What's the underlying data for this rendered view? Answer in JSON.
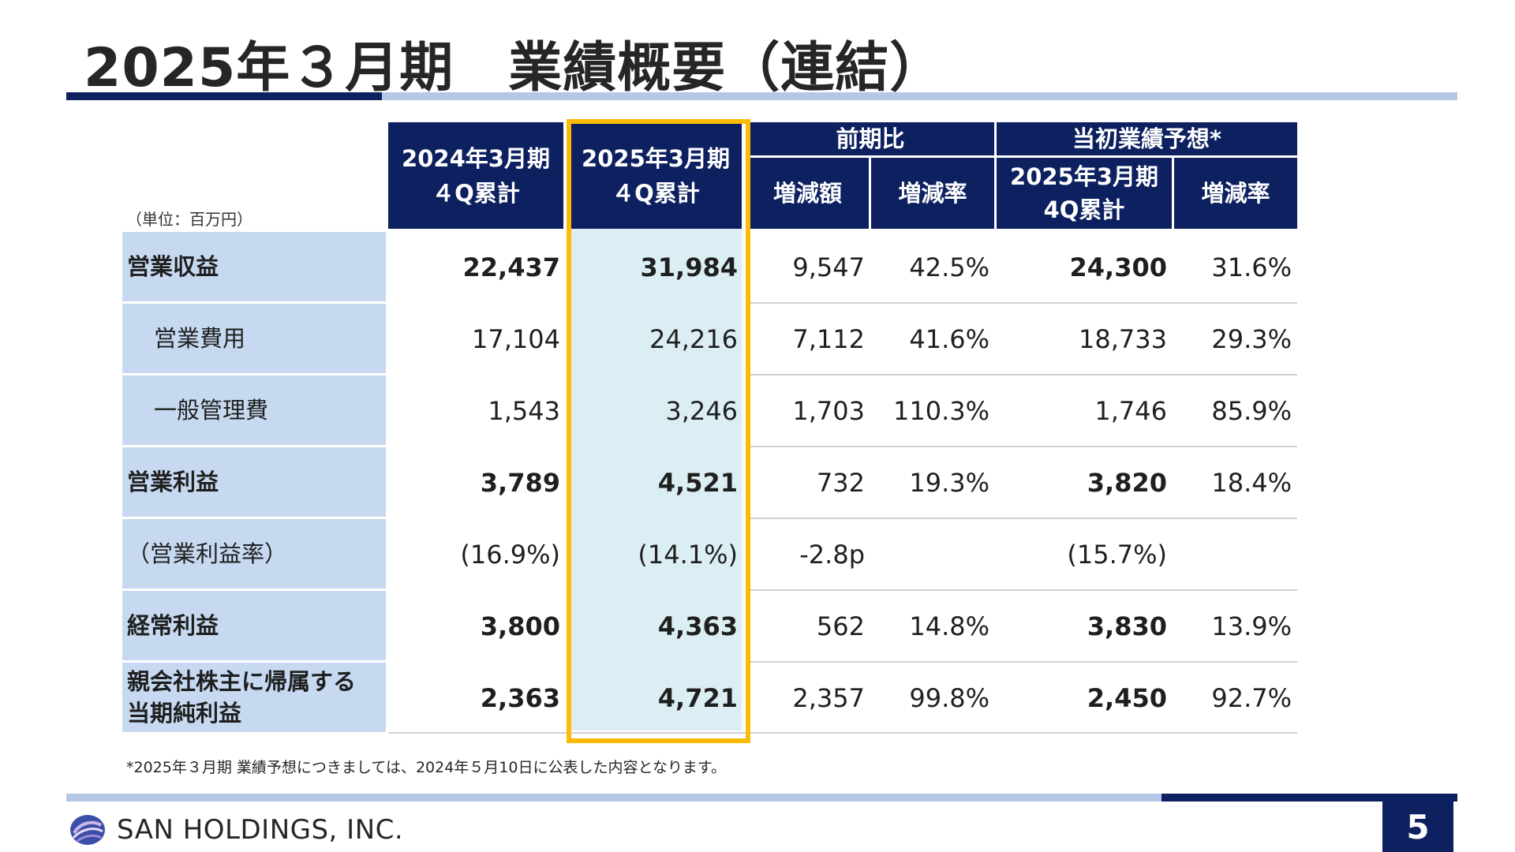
{
  "title": "2025年３月期　業績概要（連結）",
  "unit": "（単位：百万円）",
  "headers": {
    "col1": [
      "2024年3月期",
      "４Q累計"
    ],
    "col2": [
      "2025年3月期",
      "４Q累計"
    ],
    "yoy_group": "前期比",
    "yoy_amount": "増減額",
    "yoy_rate": "増減率",
    "forecast_group": "当初業績予想*",
    "forecast_value": [
      "2025年3月期",
      "4Q累計"
    ],
    "forecast_rate": "増減率"
  },
  "rows": [
    {
      "label": [
        "営業収益"
      ],
      "bold": true,
      "indent": false,
      "v2024": "22,437",
      "v2025": "31,984",
      "diff": "9,547",
      "rate": "42.5%",
      "forecast": "24,300",
      "frate": "31.6%"
    },
    {
      "label": [
        "営業費用"
      ],
      "bold": false,
      "indent": true,
      "v2024": "17,104",
      "v2025": "24,216",
      "diff": "7,112",
      "rate": "41.6%",
      "forecast": "18,733",
      "frate": "29.3%"
    },
    {
      "label": [
        "一般管理費"
      ],
      "bold": false,
      "indent": true,
      "v2024": "1,543",
      "v2025": "3,246",
      "diff": "1,703",
      "rate": "110.3%",
      "forecast": "1,746",
      "frate": "85.9%"
    },
    {
      "label": [
        "営業利益"
      ],
      "bold": true,
      "indent": false,
      "v2024": "3,789",
      "v2025": "4,521",
      "diff": "732",
      "rate": "19.3%",
      "forecast": "3,820",
      "frate": "18.4%"
    },
    {
      "label": [
        "（営業利益率）"
      ],
      "bold": false,
      "indent": false,
      "v2024": "(16.9%)",
      "v2025": "(14.1%)",
      "diff": "-2.8p",
      "rate": "",
      "forecast": "(15.7%)",
      "frate": ""
    },
    {
      "label": [
        "経常利益"
      ],
      "bold": true,
      "indent": false,
      "v2024": "3,800",
      "v2025": "4,363",
      "diff": "562",
      "rate": "14.8%",
      "forecast": "3,830",
      "frate": "13.9%"
    },
    {
      "label": [
        "親会社株主に帰属する",
        "当期純利益"
      ],
      "bold": true,
      "indent": false,
      "v2024": "2,363",
      "v2025": "4,721",
      "diff": "2,357",
      "rate": "99.8%",
      "forecast": "2,450",
      "frate": "92.7%"
    }
  ],
  "footnote": "*2025年３月期 業績予想につきましては、2024年５月10日に公表した内容となります。",
  "company": "SAN HOLDINGS, INC.",
  "page_number": "5",
  "colors": {
    "navy": "#0d2060",
    "light_blue": "#c6d9f0",
    "highlight": "#daeef3",
    "highlight_border": "#fbbb06",
    "bar_light": "#b4c7e7"
  }
}
